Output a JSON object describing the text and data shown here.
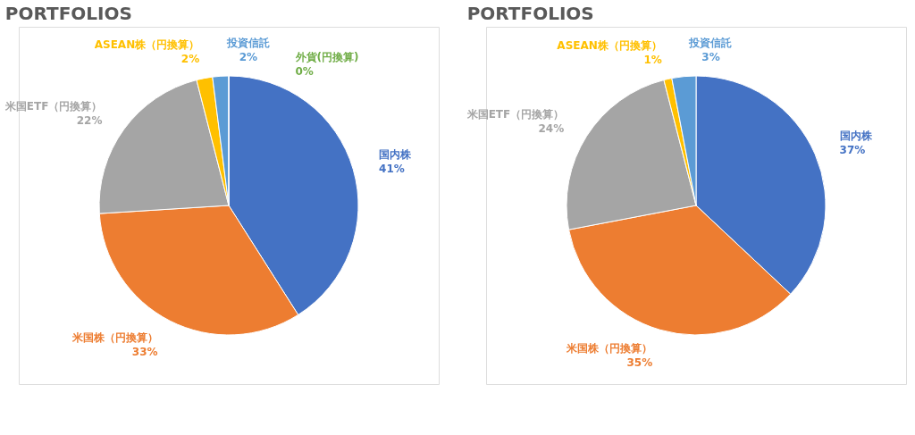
{
  "chart_data": [
    {
      "type": "pie",
      "title": "PORTFOLIOS",
      "categories": [
        "国内株",
        "米国株（円換算）",
        "米国ETF（円換算）",
        "ASEAN株（円換算）",
        "投資信託",
        "外貨(円換算)"
      ],
      "values": [
        41,
        33,
        22,
        2,
        2,
        0
      ],
      "colors": [
        "#4472c4",
        "#ed7d31",
        "#a5a5a5",
        "#ffc000",
        "#5b9bd5",
        "#70ad47"
      ],
      "value_labels": [
        "41%",
        "33%",
        "22%",
        "2%",
        "2%",
        "0%"
      ]
    },
    {
      "type": "pie",
      "title": "PORTFOLIOS",
      "categories": [
        "国内株",
        "米国株（円換算）",
        "米国ETF（円換算）",
        "ASEAN株（円換算）",
        "投資信託"
      ],
      "values": [
        37,
        35,
        24,
        1,
        3
      ],
      "colors": [
        "#4472c4",
        "#ed7d31",
        "#a5a5a5",
        "#ffc000",
        "#5b9bd5"
      ],
      "value_labels": [
        "37%",
        "35%",
        "24%",
        "1%",
        "3%"
      ]
    }
  ]
}
